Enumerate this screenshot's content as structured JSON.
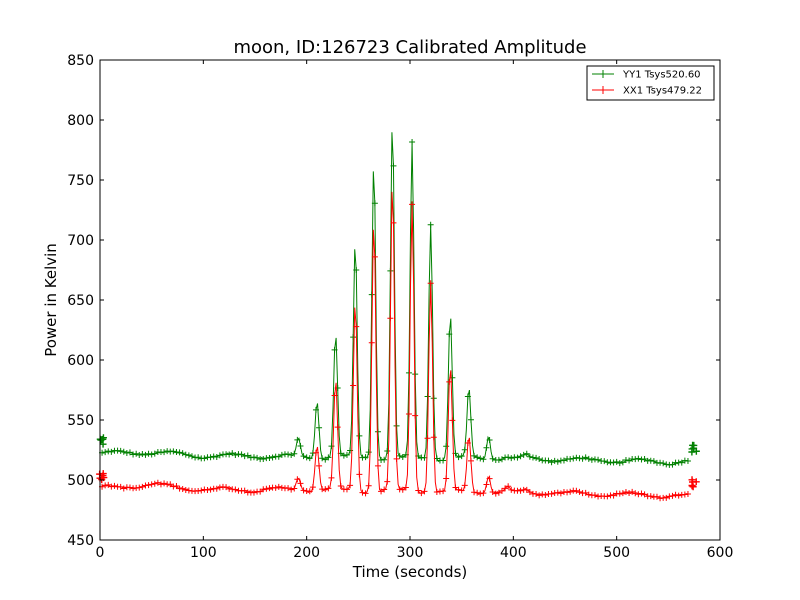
{
  "chart_data": {
    "type": "line",
    "title": "moon, ID:126723 Calibrated Amplitude",
    "xlabel": "Time (seconds)",
    "ylabel": "Power in Kelvin",
    "xlim": [
      0,
      600
    ],
    "ylim": [
      450,
      850
    ],
    "xticks": [
      "0",
      "100",
      "200",
      "300",
      "400",
      "500",
      "600"
    ],
    "yticks": [
      "450",
      "500",
      "550",
      "600",
      "650",
      "700",
      "750",
      "800",
      "850"
    ],
    "grid": false,
    "legend_position": "top-right",
    "series": [
      {
        "name": "YY1 Tsys520.60",
        "color": "#008000",
        "marker": "+",
        "baseline": [
          [
            0,
            522
          ],
          [
            50,
            523
          ],
          [
            100,
            520
          ],
          [
            150,
            520
          ],
          [
            200,
            519
          ],
          [
            250,
            519
          ],
          [
            300,
            518
          ],
          [
            350,
            518
          ],
          [
            400,
            518
          ],
          [
            450,
            517
          ],
          [
            500,
            516
          ],
          [
            550,
            515
          ],
          [
            570,
            516
          ]
        ],
        "peaks": [
          [
            192,
            534
          ],
          [
            210,
            567
          ],
          [
            228,
            622
          ],
          [
            247,
            698
          ],
          [
            265,
            767
          ],
          [
            283,
            800
          ],
          [
            302,
            780
          ],
          [
            320,
            715
          ],
          [
            339,
            638
          ],
          [
            357,
            575
          ],
          [
            376,
            537
          ],
          [
            394,
            520
          ],
          [
            412,
            521
          ]
        ],
        "endpoints": [
          [
            2,
            532
          ],
          [
            575,
            526
          ]
        ]
      },
      {
        "name": "XX1 Tsys479.22",
        "color": "#ff0000",
        "marker": "+",
        "baseline": [
          [
            0,
            493
          ],
          [
            50,
            496
          ],
          [
            100,
            492
          ],
          [
            150,
            492
          ],
          [
            200,
            492
          ],
          [
            250,
            491
          ],
          [
            300,
            491
          ],
          [
            350,
            490
          ],
          [
            400,
            490
          ],
          [
            450,
            489
          ],
          [
            500,
            488
          ],
          [
            550,
            487
          ],
          [
            570,
            487
          ]
        ],
        "peaks": [
          [
            192,
            503
          ],
          [
            210,
            530
          ],
          [
            228,
            582
          ],
          [
            247,
            650
          ],
          [
            265,
            718
          ],
          [
            283,
            748
          ],
          [
            302,
            730
          ],
          [
            320,
            665
          ],
          [
            339,
            594
          ],
          [
            357,
            537
          ],
          [
            376,
            505
          ],
          [
            394,
            493
          ],
          [
            412,
            492
          ]
        ],
        "endpoints": [
          [
            2,
            502
          ],
          [
            575,
            497
          ]
        ]
      }
    ]
  }
}
